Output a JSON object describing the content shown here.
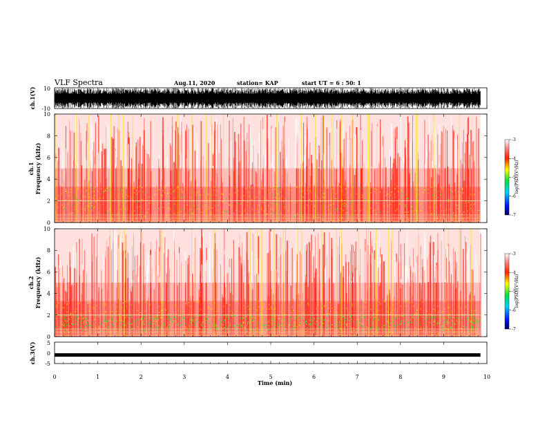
{
  "header": {
    "title": "VLF Spectra",
    "date": "Aug.11, 2020",
    "station": "station= KAP",
    "start": "start UT = 6 : 50: 1"
  },
  "colors": {
    "panel_bg": "#ffffff",
    "low": "#ff2a1a",
    "mid": "#ffe000",
    "high": "#19e633",
    "waveform": "#000000"
  },
  "chart_data": [
    {
      "type": "line",
      "panel": "ch1_waveform",
      "ylabel": "ch.1(V)",
      "ylim": [
        -10,
        10
      ],
      "yticks": [
        "10",
        "-10"
      ],
      "xlim": [
        0,
        10
      ],
      "description_values": {
        "amplitude_min": -10,
        "amplitude_max": 10
      }
    },
    {
      "type": "heatmap",
      "panel": "ch1_spectrogram",
      "ylabel_lines": [
        "ch.1",
        "Frequency (kHz)"
      ],
      "ylim": [
        0,
        10
      ],
      "yticks": [
        "0",
        "2",
        "4",
        "6",
        "8",
        "10"
      ],
      "xlim": [
        0,
        10
      ],
      "colorbar": {
        "label": "log(PSD)(V²/Hz)",
        "range": [
          -7,
          -3
        ],
        "ticks": [
          "-3",
          "-4",
          "-5",
          "-6",
          "-7"
        ]
      }
    },
    {
      "type": "heatmap",
      "panel": "ch2_spectrogram",
      "ylabel_lines": [
        "ch.2",
        "Frequency (kHz)"
      ],
      "ylim": [
        0,
        10
      ],
      "yticks": [
        "0",
        "2",
        "4",
        "6",
        "8",
        "10"
      ],
      "xlim": [
        0,
        10
      ],
      "colorbar": {
        "label": "log(PSD)(V²/Hz)",
        "range": [
          -7,
          -3
        ],
        "ticks": [
          "-3",
          "-4",
          "-5",
          "-6",
          "-7"
        ]
      }
    },
    {
      "type": "line",
      "panel": "ch3_waveform",
      "ylabel": "ch.3(V)",
      "ylim": [
        -5,
        5
      ],
      "yticks": [
        "5",
        "0",
        "-5"
      ],
      "xlim": [
        0,
        10
      ],
      "level": -1
    }
  ],
  "xaxis": {
    "label": "Time (min)",
    "ticks": [
      "0",
      "1",
      "2",
      "3",
      "4",
      "5",
      "6",
      "7",
      "8",
      "9",
      "10"
    ],
    "data_end": 9.85
  }
}
